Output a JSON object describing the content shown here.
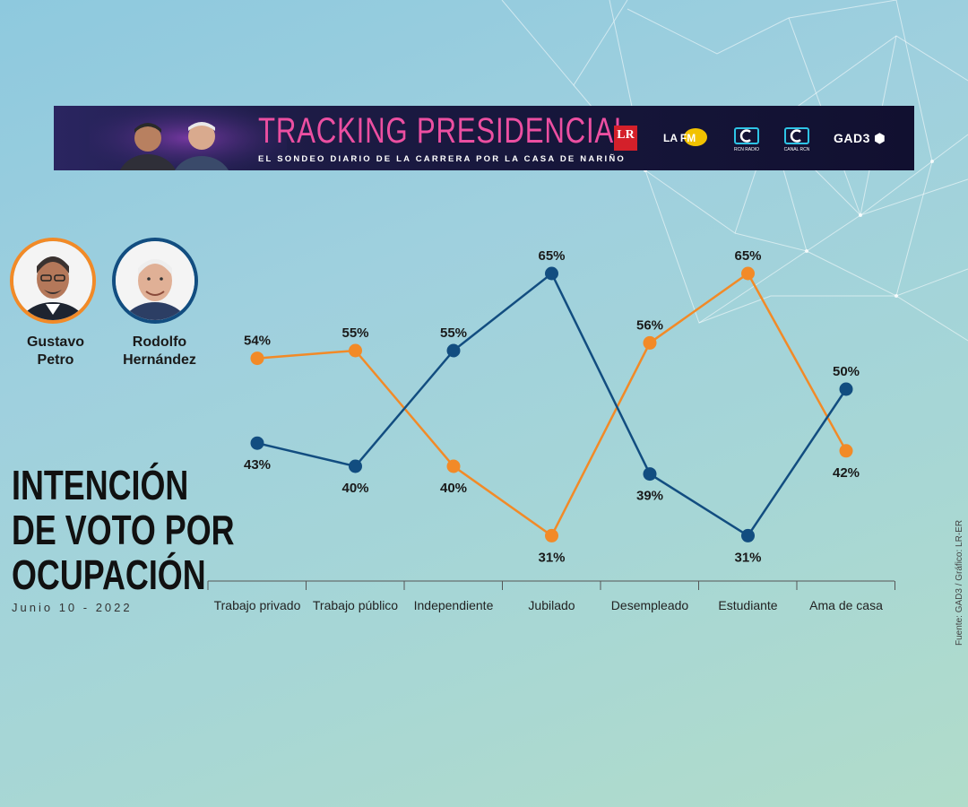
{
  "banner": {
    "title": "TRACKING PRESIDENCIAL",
    "subtitle": "EL SONDEO DIARIO DE LA CARRERA POR LA CASA DE NARIÑO",
    "logos": [
      {
        "name": "la-republica-logo",
        "text": "LR"
      },
      {
        "name": "la-fm-logo",
        "text": "LA FM"
      },
      {
        "name": "rcn-radio-logo",
        "text": "RCN RADIO"
      },
      {
        "name": "canal-rcn-logo",
        "text": "CANAL RCN"
      },
      {
        "name": "gad3-logo",
        "text": "GAD3"
      }
    ]
  },
  "candidates": [
    {
      "first": "Gustavo",
      "last": "Petro",
      "color": "#f28a27"
    },
    {
      "first": "Rodolfo",
      "last": "Hernández",
      "color": "#124d80"
    }
  ],
  "heading": {
    "lines": [
      "INTENCIÓN",
      "DE VOTO POR",
      "OCUPACIÓN"
    ],
    "date": "Junio 10 - 2022"
  },
  "source": "Fuente: GAD3 / Gráfico: LR-ER",
  "chart_data": {
    "type": "line",
    "categories": [
      "Trabajo privado",
      "Trabajo público",
      "Independiente",
      "Jubilado",
      "Desempleado",
      "Estudiante",
      "Ama de casa"
    ],
    "series": [
      {
        "name": "Gustavo Petro",
        "color": "#f28a27",
        "values": [
          54,
          55,
          40,
          31,
          56,
          65,
          42
        ],
        "labels": [
          "54%",
          "55%",
          "40%",
          "31%",
          "56%",
          "65%",
          "42%"
        ]
      },
      {
        "name": "Rodolfo Hernández",
        "color": "#124d80",
        "values": [
          43,
          40,
          55,
          65,
          39,
          31,
          50
        ],
        "labels": [
          "43%",
          "40%",
          "55%",
          "65%",
          "39%",
          "31%",
          "50%"
        ]
      }
    ],
    "grid": false,
    "legend": "left"
  }
}
